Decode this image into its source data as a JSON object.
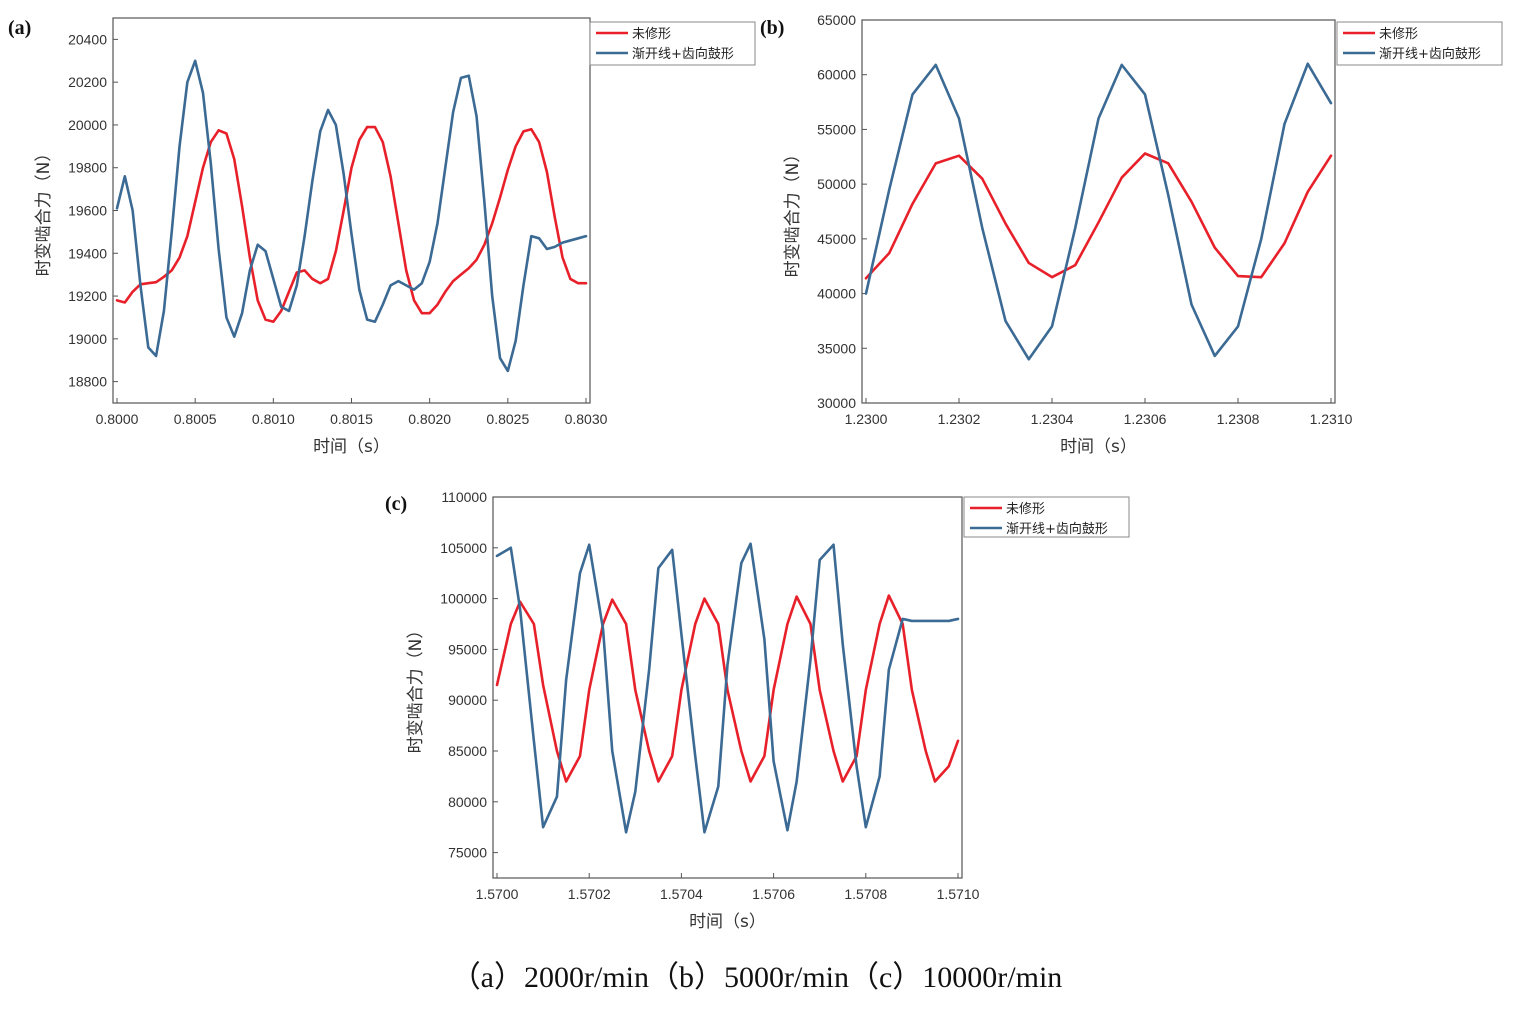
{
  "caption": "（a）2000r/min（b）5000r/min（c）10000r/min",
  "colors": {
    "series0": "#e8202a",
    "series1": "#3b6a94",
    "axis": "#555555"
  },
  "chart_data": [
    {
      "panel_label": "(a)",
      "type": "line",
      "xlabel": "时间（s）",
      "ylabel": "时变啮合力（N）",
      "xlim": [
        0.8,
        0.803
      ],
      "ylim": [
        18700,
        20500
      ],
      "xticks": [
        0.8,
        0.8005,
        0.801,
        0.8015,
        0.802,
        0.8025,
        0.803
      ],
      "xtick_labels": [
        "0.8000",
        "0.8005",
        "0.8010",
        "0.8015",
        "0.8020",
        "0.8025",
        "0.8030"
      ],
      "yticks": [
        18800,
        19000,
        19200,
        19400,
        19600,
        19800,
        20000,
        20200,
        20400
      ],
      "ytick_labels": [
        "18800",
        "19000",
        "19200",
        "19400",
        "19600",
        "19800",
        "20000",
        "20200",
        "20400"
      ],
      "legend": {
        "position": "top-right-outside"
      },
      "series": [
        {
          "name": "未修形",
          "x": [
            0.8,
            0.80005,
            0.8001,
            0.80015,
            0.8002,
            0.80025,
            0.8003,
            0.80035,
            0.8004,
            0.80045,
            0.8005,
            0.80055,
            0.8006,
            0.80065,
            0.8007,
            0.80075,
            0.8008,
            0.80085,
            0.8009,
            0.80095,
            0.801,
            0.80105,
            0.8011,
            0.80115,
            0.8012,
            0.80125,
            0.8013,
            0.80135,
            0.8014,
            0.80145,
            0.8015,
            0.80155,
            0.8016,
            0.80165,
            0.8017,
            0.80175,
            0.8018,
            0.80185,
            0.8019,
            0.80195,
            0.802,
            0.80205,
            0.8021,
            0.80215,
            0.8022,
            0.80225,
            0.8023,
            0.80235,
            0.8024,
            0.80245,
            0.8025,
            0.80255,
            0.8026,
            0.80265,
            0.8027,
            0.80275,
            0.8028,
            0.80285,
            0.8029,
            0.80295,
            0.803
          ],
          "y": [
            19180,
            19170,
            19220,
            19255,
            19260,
            19265,
            19290,
            19320,
            19380,
            19480,
            19640,
            19800,
            19920,
            19975,
            19960,
            19840,
            19620,
            19380,
            19180,
            19090,
            19080,
            19130,
            19220,
            19310,
            19320,
            19280,
            19260,
            19280,
            19410,
            19600,
            19800,
            19930,
            19990,
            19990,
            19920,
            19760,
            19540,
            19320,
            19180,
            19120,
            19120,
            19160,
            19220,
            19270,
            19300,
            19330,
            19370,
            19440,
            19540,
            19660,
            19790,
            19900,
            19970,
            19980,
            19920,
            19780,
            19570,
            19380,
            19280,
            19260,
            19260
          ]
        },
        {
          "name": "渐开线+齿向鼓形",
          "x": [
            0.8,
            0.80005,
            0.8001,
            0.80015,
            0.8002,
            0.80025,
            0.8003,
            0.80035,
            0.8004,
            0.80045,
            0.8005,
            0.80055,
            0.8006,
            0.80065,
            0.8007,
            0.80075,
            0.8008,
            0.80085,
            0.8009,
            0.80095,
            0.801,
            0.80105,
            0.8011,
            0.80115,
            0.8012,
            0.80125,
            0.8013,
            0.80135,
            0.8014,
            0.80145,
            0.8015,
            0.80155,
            0.8016,
            0.80165,
            0.8017,
            0.80175,
            0.8018,
            0.80185,
            0.8019,
            0.80195,
            0.802,
            0.80205,
            0.8021,
            0.80215,
            0.8022,
            0.80225,
            0.8023,
            0.80235,
            0.8024,
            0.80245,
            0.8025,
            0.80255,
            0.8026,
            0.80265,
            0.8027,
            0.80275,
            0.8028,
            0.80285,
            0.8029,
            0.80295,
            0.803
          ],
          "y": [
            19610,
            19760,
            19600,
            19250,
            18960,
            18920,
            19130,
            19500,
            19900,
            20200,
            20300,
            20150,
            19820,
            19420,
            19100,
            19010,
            19120,
            19320,
            19440,
            19410,
            19280,
            19150,
            19130,
            19250,
            19480,
            19740,
            19970,
            20070,
            20000,
            19770,
            19490,
            19230,
            19090,
            19080,
            19160,
            19250,
            19270,
            19250,
            19230,
            19260,
            19360,
            19540,
            19800,
            20060,
            20220,
            20230,
            20040,
            19640,
            19200,
            18910,
            18850,
            18990,
            19250,
            19480,
            19470,
            19420,
            19430,
            19450,
            19460,
            19470,
            19480
          ]
        }
      ]
    },
    {
      "panel_label": "(b)",
      "type": "line",
      "xlabel": "时间（s）",
      "ylabel": "时变啮合力（N）",
      "xlim": [
        1.23,
        1.231
      ],
      "ylim": [
        30000,
        65000
      ],
      "xticks": [
        1.23,
        1.2302,
        1.2304,
        1.2306,
        1.2308,
        1.231
      ],
      "xtick_labels": [
        "1.2300",
        "1.2302",
        "1.2304",
        "1.2306",
        "1.2308",
        "1.2310"
      ],
      "yticks": [
        30000,
        35000,
        40000,
        45000,
        50000,
        55000,
        60000,
        65000
      ],
      "ytick_labels": [
        "30000",
        "35000",
        "40000",
        "45000",
        "50000",
        "55000",
        "60000",
        "65000"
      ],
      "legend": {
        "position": "top-right-outside"
      },
      "series": [
        {
          "name": "未修形",
          "x": [
            1.23,
            1.23005,
            1.2301,
            1.23015,
            1.2302,
            1.23025,
            1.2303,
            1.23035,
            1.2304,
            1.23045,
            1.2305,
            1.23055,
            1.2306,
            1.23065,
            1.2307,
            1.23075,
            1.2308,
            1.23085,
            1.2309,
            1.23095,
            1.231
          ],
          "y": [
            41400,
            43700,
            48200,
            51900,
            52600,
            50500,
            46400,
            42800,
            41500,
            42600,
            46500,
            50600,
            52800,
            51900,
            48400,
            44200,
            41600,
            41500,
            44600,
            49300,
            52600
          ]
        },
        {
          "name": "渐开线+齿向鼓形",
          "x": [
            1.23,
            1.23005,
            1.2301,
            1.23015,
            1.2302,
            1.23025,
            1.2303,
            1.23035,
            1.2304,
            1.23045,
            1.2305,
            1.23055,
            1.2306,
            1.23065,
            1.2307,
            1.23075,
            1.2308,
            1.23085,
            1.2309,
            1.23095,
            1.231
          ],
          "y": [
            40000,
            49500,
            58200,
            60900,
            56000,
            46000,
            37500,
            34000,
            37000,
            46000,
            56000,
            60900,
            58200,
            49000,
            39000,
            34300,
            37000,
            45000,
            55500,
            61000,
            57400
          ]
        }
      ]
    },
    {
      "panel_label": "(c)",
      "type": "line",
      "xlabel": "时间（s）",
      "ylabel": "时变啮合力（N）",
      "xlim": [
        1.57,
        1.571
      ],
      "ylim": [
        72500,
        110000
      ],
      "xticks": [
        1.57,
        1.5702,
        1.5704,
        1.5706,
        1.5708,
        1.571
      ],
      "xtick_labels": [
        "1.5700",
        "1.5702",
        "1.5704",
        "1.5706",
        "1.5708",
        "1.5710"
      ],
      "yticks": [
        75000,
        80000,
        85000,
        90000,
        95000,
        100000,
        105000,
        110000
      ],
      "ytick_labels": [
        "75000",
        "80000",
        "85000",
        "90000",
        "95000",
        "100000",
        "105000",
        "110000"
      ],
      "legend": {
        "position": "top-right-outside"
      },
      "series": [
        {
          "name": "未修形",
          "x": [
            1.57,
            1.57003,
            1.57005,
            1.57008,
            1.5701,
            1.57013,
            1.57015,
            1.57018,
            1.5702,
            1.57023,
            1.57025,
            1.57028,
            1.5703,
            1.57033,
            1.57035,
            1.57038,
            1.5704,
            1.57043,
            1.57045,
            1.57048,
            1.5705,
            1.57053,
            1.57055,
            1.57058,
            1.5706,
            1.57063,
            1.57065,
            1.57068,
            1.5707,
            1.57073,
            1.57075,
            1.57078,
            1.5708,
            1.57083,
            1.57085,
            1.57088,
            1.5709,
            1.57093,
            1.57095,
            1.57098,
            1.571
          ],
          "y": [
            91500,
            97500,
            99700,
            97500,
            91500,
            85000,
            82000,
            84500,
            91000,
            97500,
            99900,
            97500,
            91000,
            85000,
            82000,
            84500,
            91000,
            97500,
            100000,
            97500,
            91000,
            85000,
            82000,
            84500,
            91000,
            97500,
            100200,
            97500,
            91000,
            85000,
            82000,
            84500,
            91000,
            97500,
            100300,
            97500,
            91000,
            85000,
            82000,
            83500,
            86000
          ]
        },
        {
          "name": "渐开线+齿向鼓形",
          "x": [
            1.57,
            1.57003,
            1.57005,
            1.57008,
            1.5701,
            1.57013,
            1.57015,
            1.57018,
            1.5702,
            1.57023,
            1.57025,
            1.57028,
            1.5703,
            1.57033,
            1.57035,
            1.57038,
            1.5704,
            1.57043,
            1.57045,
            1.57048,
            1.5705,
            1.57053,
            1.57055,
            1.57058,
            1.5706,
            1.57063,
            1.57065,
            1.57068,
            1.5707,
            1.57073,
            1.57075,
            1.57078,
            1.5708,
            1.57083,
            1.57085,
            1.57088,
            1.5709,
            1.57093,
            1.57095,
            1.57098,
            1.571
          ],
          "y": [
            104200,
            105000,
            99000,
            86000,
            77500,
            80500,
            92000,
            102500,
            105300,
            97000,
            85000,
            77000,
            81000,
            93000,
            103000,
            104800,
            96500,
            84500,
            77000,
            81500,
            93500,
            103500,
            105400,
            96000,
            84000,
            77200,
            82000,
            94000,
            103800,
            105300,
            95500,
            83500,
            77500,
            82500,
            93000,
            98000,
            97800,
            97800,
            97800,
            97800,
            98000
          ]
        }
      ]
    }
  ]
}
